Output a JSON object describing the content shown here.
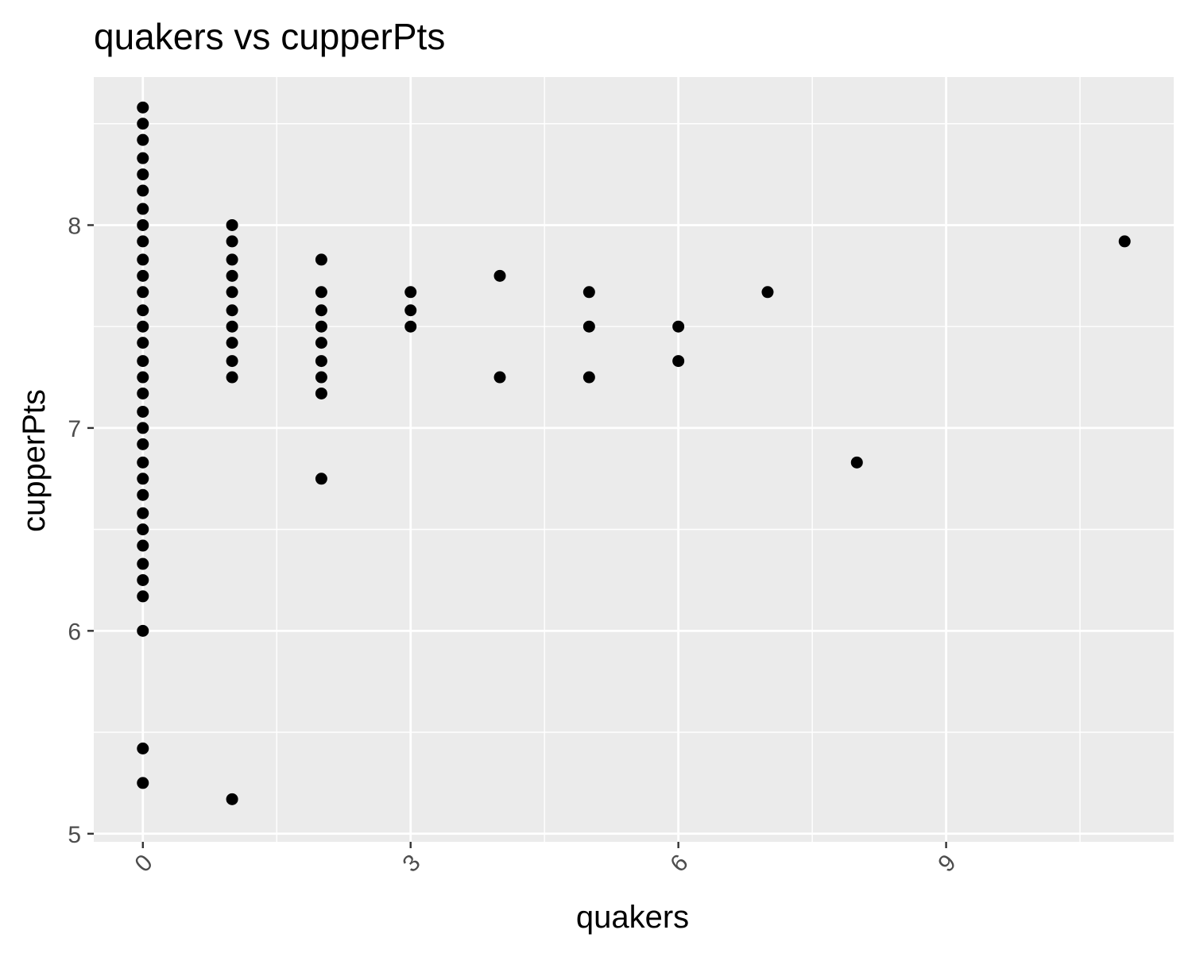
{
  "chart_data": {
    "type": "scatter",
    "title": "quakers vs cupperPts",
    "xlabel": "quakers",
    "ylabel": "cupperPts",
    "xlim": [
      -0.55,
      11.55
    ],
    "ylim": [
      4.96,
      8.73
    ],
    "x_ticks": [
      0,
      3,
      6,
      9
    ],
    "x_tick_labels": [
      "0",
      "3",
      "6",
      "9"
    ],
    "x_minor": [
      1.5,
      4.5,
      7.5,
      10.5
    ],
    "y_ticks": [
      5,
      6,
      7,
      8
    ],
    "y_tick_labels": [
      "5",
      "6",
      "7",
      "8"
    ],
    "y_minor": [
      5.5,
      6.5,
      7.5,
      8.5
    ],
    "grid": true,
    "panel_color": "#ebebeb",
    "grid_color": "#ffffff",
    "point_color": "#000000",
    "points": [
      [
        0,
        8.58
      ],
      [
        0,
        8.5
      ],
      [
        0,
        8.42
      ],
      [
        0,
        8.33
      ],
      [
        0,
        8.25
      ],
      [
        0,
        8.17
      ],
      [
        0,
        8.08
      ],
      [
        0,
        8.0
      ],
      [
        0,
        7.92
      ],
      [
        0,
        7.83
      ],
      [
        0,
        7.75
      ],
      [
        0,
        7.67
      ],
      [
        0,
        7.58
      ],
      [
        0,
        7.5
      ],
      [
        0,
        7.42
      ],
      [
        0,
        7.33
      ],
      [
        0,
        7.25
      ],
      [
        0,
        7.17
      ],
      [
        0,
        7.08
      ],
      [
        0,
        7.0
      ],
      [
        0,
        6.92
      ],
      [
        0,
        6.83
      ],
      [
        0,
        6.75
      ],
      [
        0,
        6.67
      ],
      [
        0,
        6.58
      ],
      [
        0,
        6.5
      ],
      [
        0,
        6.42
      ],
      [
        0,
        6.33
      ],
      [
        0,
        6.25
      ],
      [
        0,
        6.17
      ],
      [
        0,
        6.0
      ],
      [
        0,
        5.42
      ],
      [
        0,
        5.25
      ],
      [
        1,
        8.0
      ],
      [
        1,
        7.92
      ],
      [
        1,
        7.83
      ],
      [
        1,
        7.75
      ],
      [
        1,
        7.67
      ],
      [
        1,
        7.58
      ],
      [
        1,
        7.5
      ],
      [
        1,
        7.42
      ],
      [
        1,
        7.33
      ],
      [
        1,
        7.25
      ],
      [
        1,
        5.17
      ],
      [
        2,
        7.83
      ],
      [
        2,
        7.67
      ],
      [
        2,
        7.58
      ],
      [
        2,
        7.5
      ],
      [
        2,
        7.42
      ],
      [
        2,
        7.33
      ],
      [
        2,
        7.25
      ],
      [
        2,
        7.17
      ],
      [
        2,
        6.75
      ],
      [
        3,
        7.67
      ],
      [
        3,
        7.58
      ],
      [
        3,
        7.5
      ],
      [
        4,
        7.75
      ],
      [
        4,
        7.25
      ],
      [
        5,
        7.67
      ],
      [
        5,
        7.5
      ],
      [
        5,
        7.25
      ],
      [
        6,
        7.5
      ],
      [
        6,
        7.33
      ],
      [
        7,
        7.67
      ],
      [
        8,
        6.83
      ],
      [
        11,
        7.92
      ]
    ]
  }
}
